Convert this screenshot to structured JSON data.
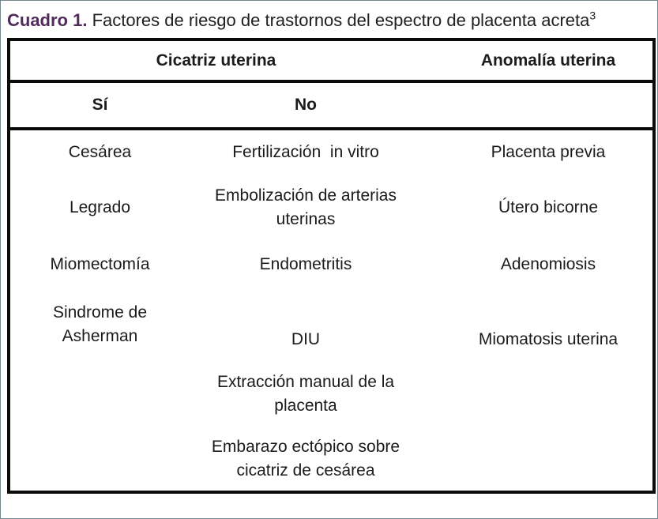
{
  "colors": {
    "caption_accent": "#512b5a",
    "table_border": "#0b0b0b",
    "frame_border": "#77878e",
    "text": "#1b1b1b",
    "background": "#ffffff"
  },
  "caption": {
    "label": "Cuadro 1.",
    "text": " Factores de riesgo de trastornos del espectro de placenta acreta",
    "superscript": "3"
  },
  "table": {
    "header": {
      "group_col1_2": "Cicatriz uterina",
      "col3": "Anomalía uterina"
    },
    "subheader": {
      "col1": "Sí",
      "col2": "No"
    },
    "rows": [
      {
        "col1": "Cesárea",
        "col2": "Fertilización  in vitro",
        "col3": "Placenta previa"
      },
      {
        "col1": "Legrado",
        "col2": "Embolización de arterias\nuterinas",
        "col3": "Útero bicorne"
      },
      {
        "col1": "Miomectomía",
        "col2": "Endometritis",
        "col3": "Adenomiosis"
      },
      {
        "col1": "Sindrome de\nAsherman",
        "col2": "DIU",
        "col3": "Miomatosis uterina"
      },
      {
        "col1": "",
        "col2": "Extracción manual de la\nplacenta",
        "col3": ""
      },
      {
        "col1": "",
        "col2": "Embarazo ectópico sobre\ncicatriz de cesárea",
        "col3": ""
      }
    ]
  }
}
